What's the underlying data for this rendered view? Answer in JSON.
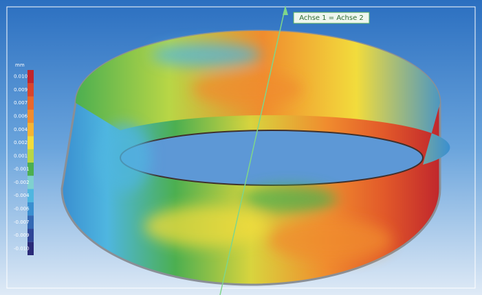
{
  "axis_label": "Achse 1 = Achse 2",
  "legend": {
    "unit": "mm",
    "items": [
      {
        "label": "0.010",
        "color": "#c0262c"
      },
      {
        "label": "0.009",
        "color": "#d9452b"
      },
      {
        "label": "0.007",
        "color": "#e8682c"
      },
      {
        "label": "0.006",
        "color": "#f08c2e"
      },
      {
        "label": "0.004",
        "color": "#f6b432"
      },
      {
        "label": "0.002",
        "color": "#f2dc3c"
      },
      {
        "label": "0.001",
        "color": "#b8d646"
      },
      {
        "label": "-0.001",
        "color": "#4caf50"
      },
      {
        "label": "-0.002",
        "color": "#7fd0cf"
      },
      {
        "label": "-0.004",
        "color": "#4fb6e0"
      },
      {
        "label": "-0.006",
        "color": "#3a8fd0"
      },
      {
        "label": "-0.007",
        "color": "#3469b4"
      },
      {
        "label": "-0.009",
        "color": "#2f4597"
      },
      {
        "label": "-0.010",
        "color": "#2a2a78"
      }
    ]
  }
}
